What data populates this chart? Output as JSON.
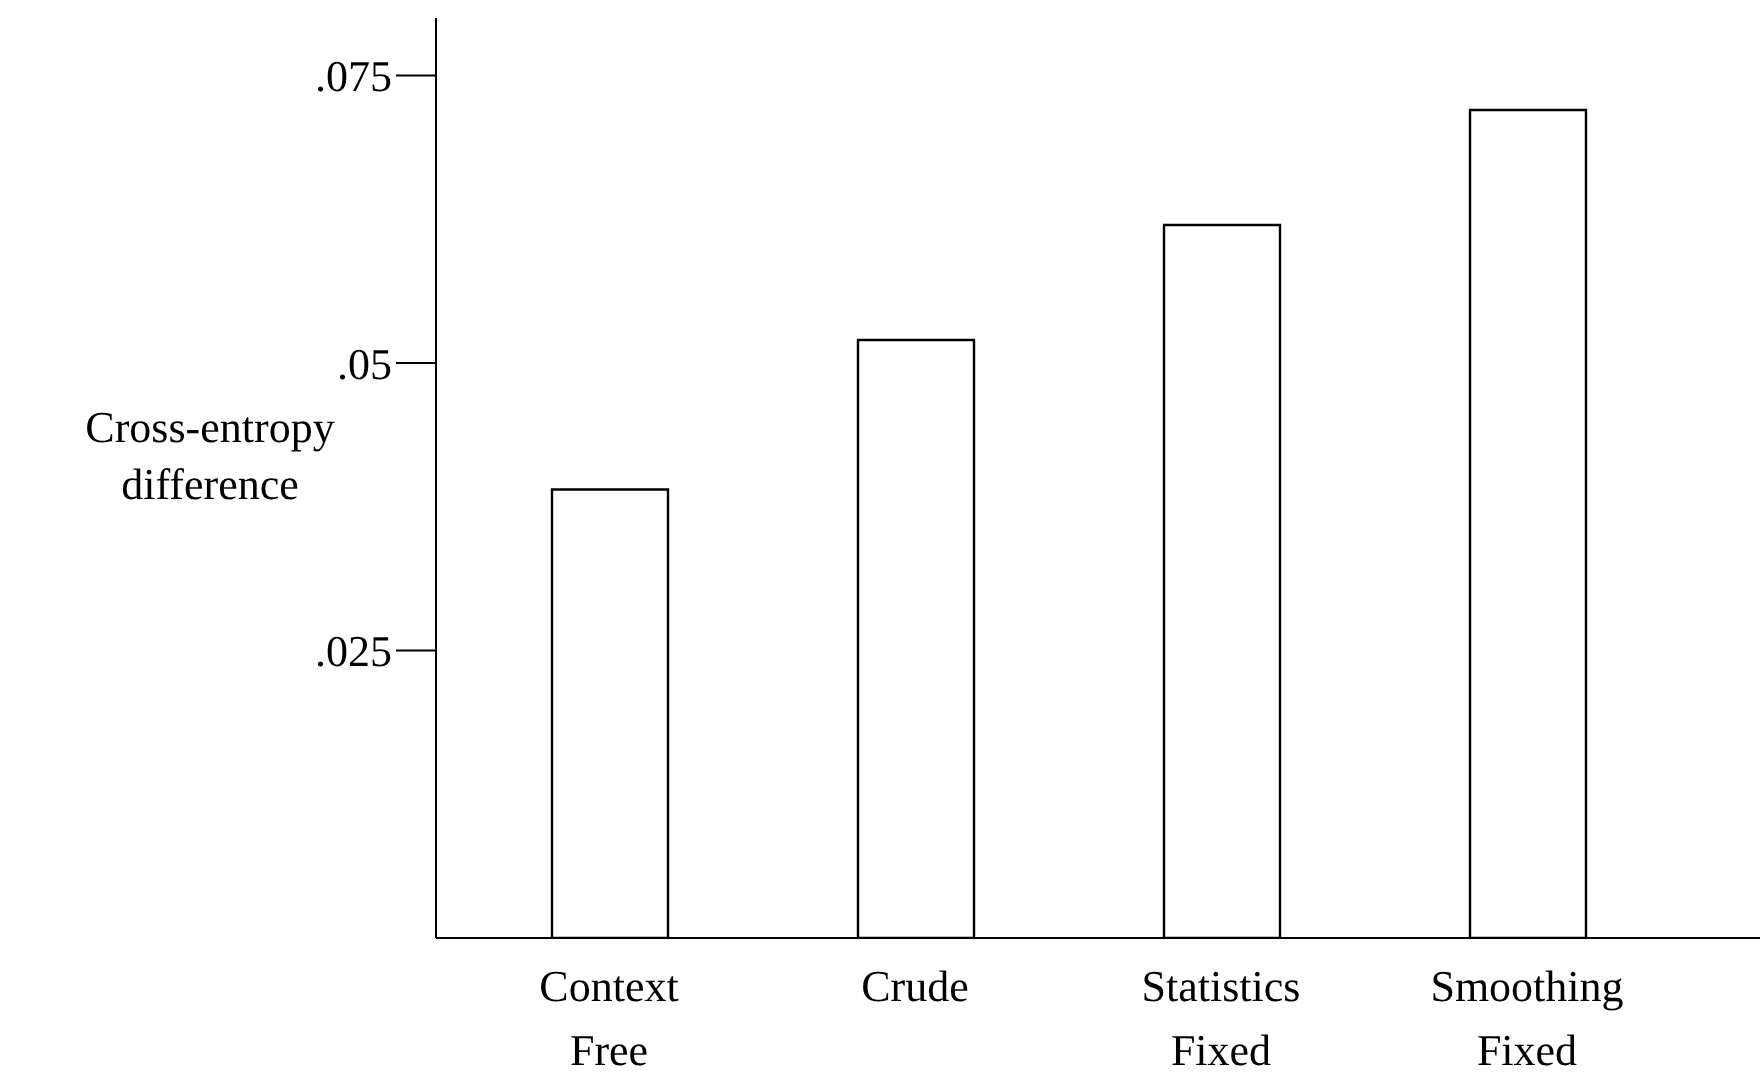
{
  "chart_data": {
    "type": "bar",
    "ylabel": "Cross-entropy\ndifference",
    "categories": [
      "Context\nFree",
      "Crude",
      "Statistics\nFixed",
      "Smoothing\nFixed"
    ],
    "values": [
      0.039,
      0.052,
      0.062,
      0.072
    ],
    "color": "#ffffff",
    "ylim": [
      0,
      0.08
    ],
    "yticks": [
      {
        "value": 0.025,
        "label": ".025"
      },
      {
        "value": 0.05,
        "label": ".05"
      },
      {
        "value": 0.075,
        "label": ".075"
      }
    ],
    "grid": false,
    "legend": false
  }
}
